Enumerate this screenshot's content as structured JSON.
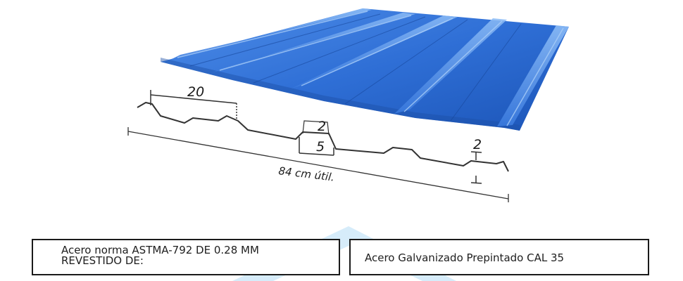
{
  "profile": {
    "dim_module": "20",
    "dim_crest_top": "2",
    "dim_crest_height": "5",
    "dim_edge": "2",
    "useful_width": "84 cm útil."
  },
  "colors": {
    "sheet_light": "#4f8ee8",
    "sheet_mid": "#2f6fd6",
    "sheet_dark": "#1c55b8",
    "watermark": "#d6ecfa",
    "line": "#333333"
  },
  "spec": {
    "left_line1": "Acero norma ASTMA-792 DE 0.28 MM",
    "left_line2": "REVESTIDO DE:",
    "right": "Acero Galvanizado Prepintado CAL 35"
  }
}
